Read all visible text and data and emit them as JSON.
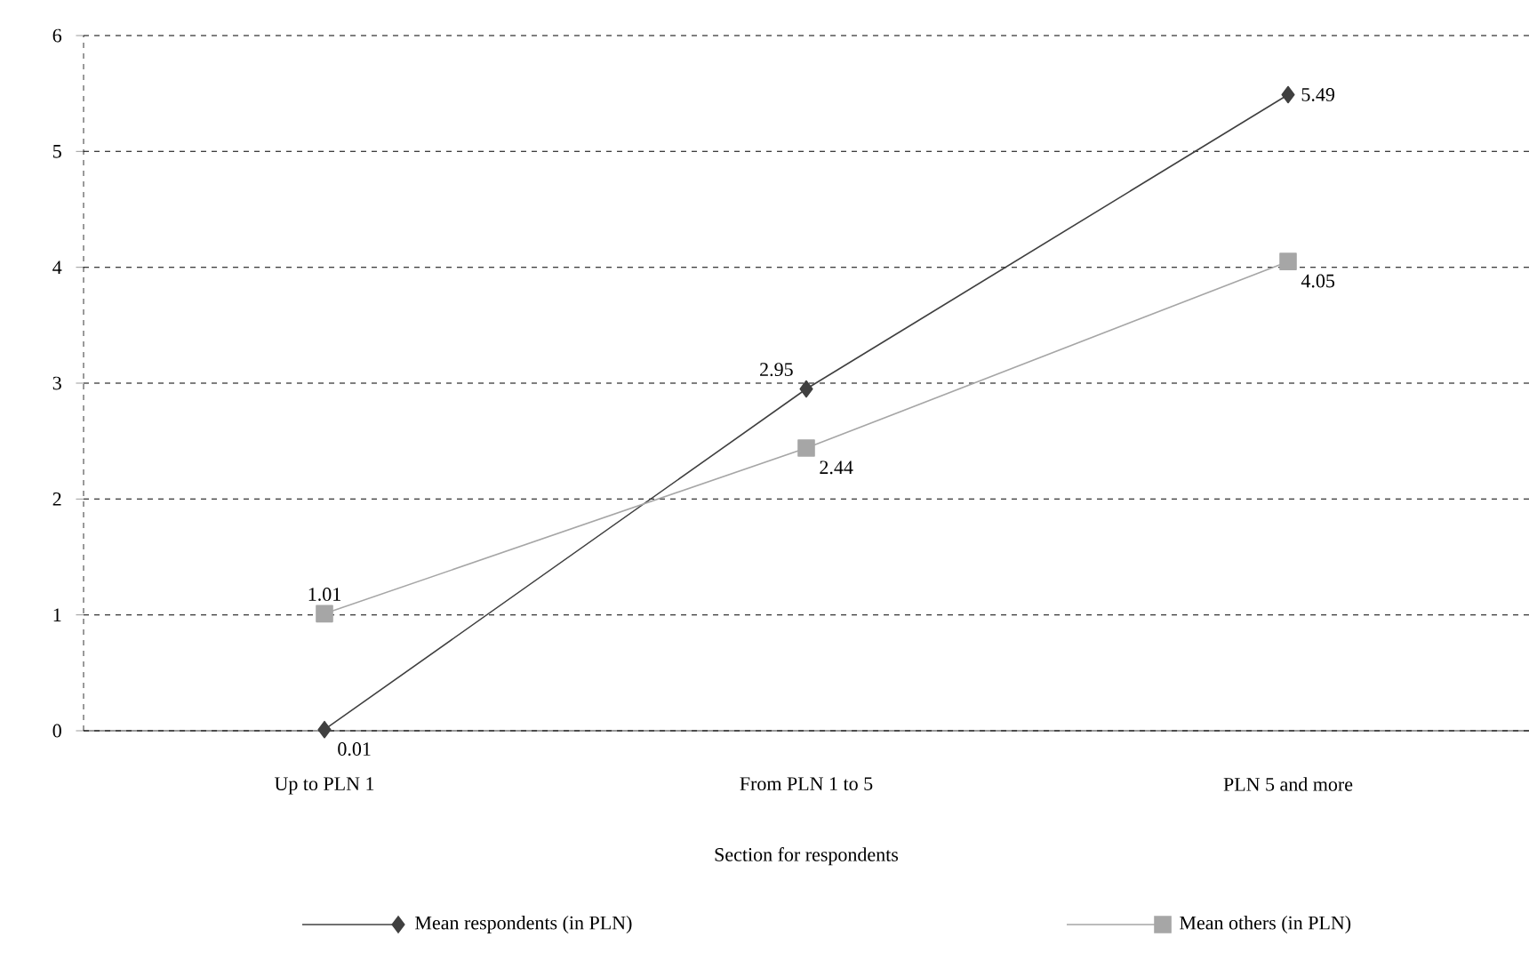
{
  "chart_data": {
    "type": "line",
    "xlabel": "Section for respondents",
    "categories": [
      "Up to PLN 1",
      "From PLN 1 to 5",
      "PLN 5 and more"
    ],
    "series": [
      {
        "name": "Mean respondents (in PLN)",
        "color": "#404040",
        "marker": "diamond",
        "values": [
          0.01,
          2.95,
          5.49
        ]
      },
      {
        "name": "Mean others (in PLN)",
        "color": "#a6a6a6",
        "marker": "square",
        "values": [
          1.01,
          2.44,
          4.05
        ]
      }
    ],
    "ylim": [
      0,
      6
    ],
    "yticks": [
      0,
      1,
      2,
      3,
      4,
      5,
      6
    ],
    "grid": "y",
    "legend": "bottom",
    "data_labels": true,
    "line_style": "solid"
  }
}
